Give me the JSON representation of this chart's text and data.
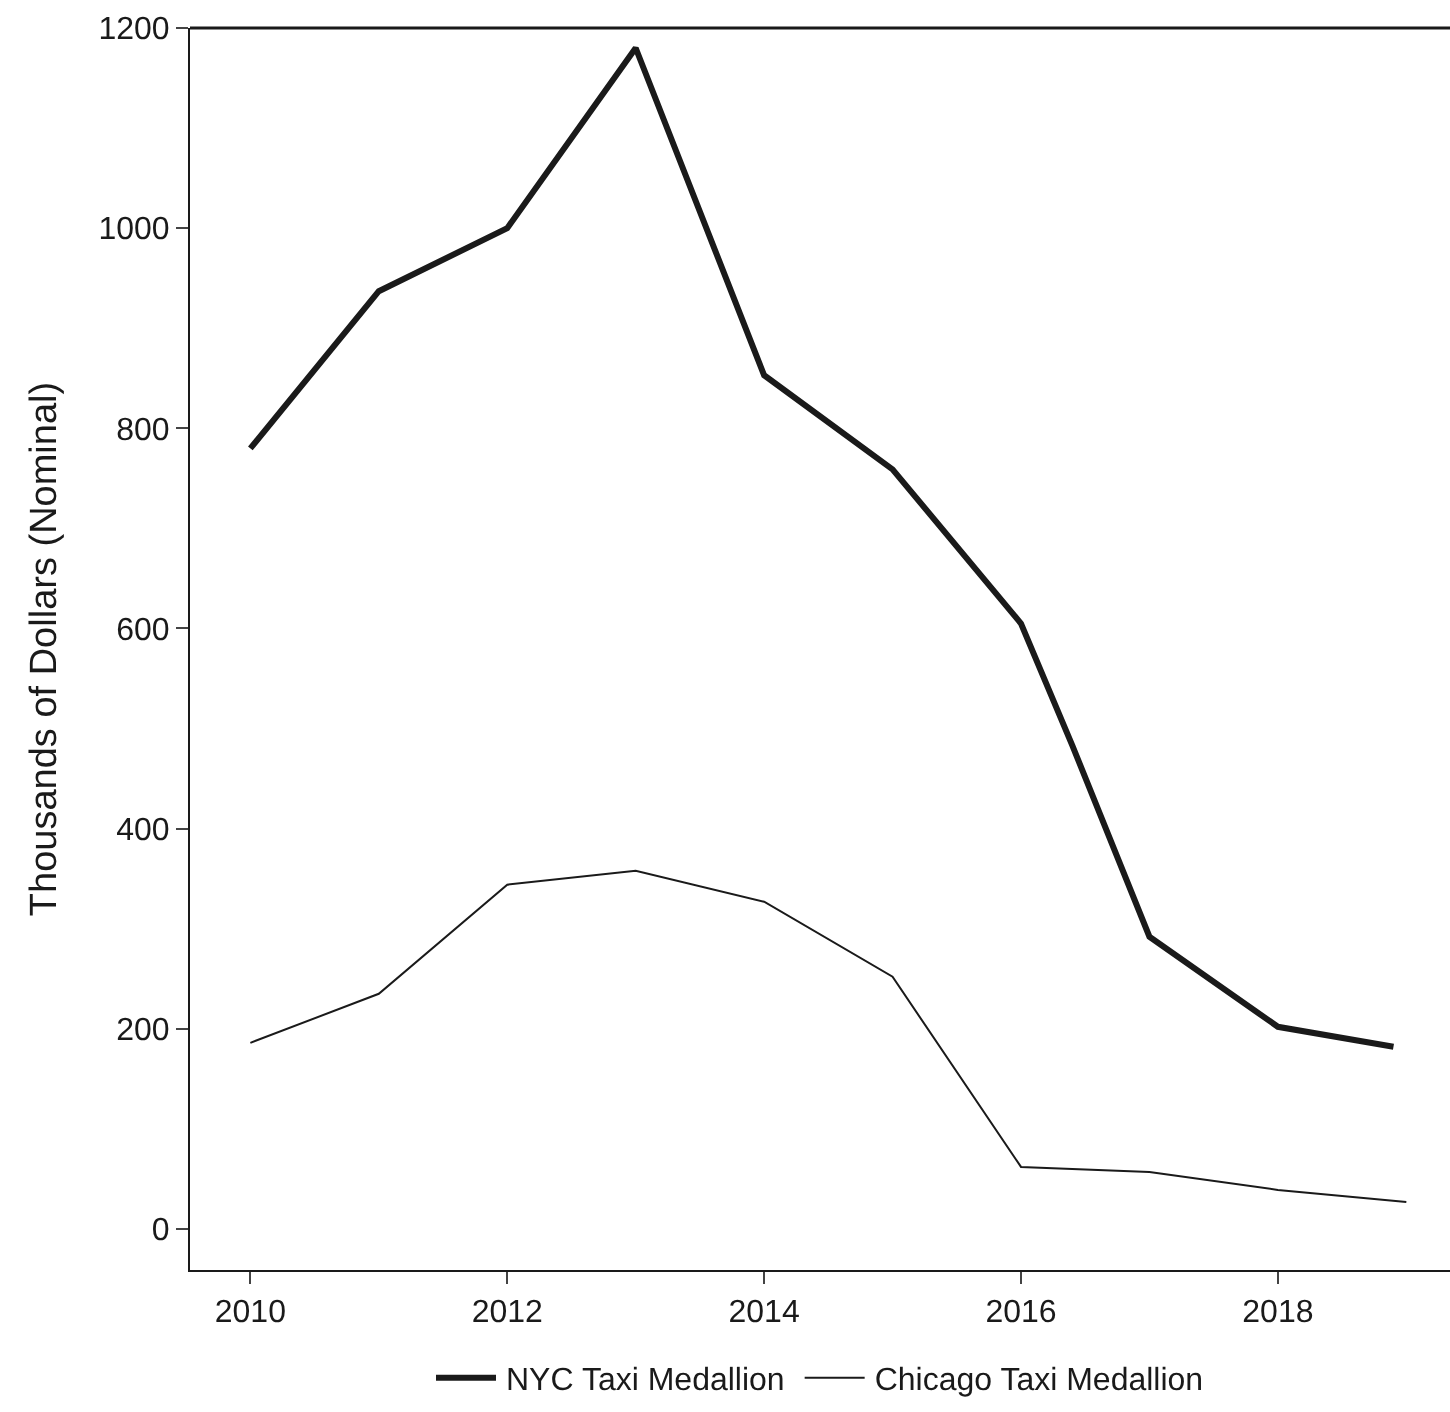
{
  "chart_data": {
    "type": "line",
    "ylabel": "Thousands of Dollars (Nominal)",
    "series": [
      {
        "name": "NYC Taxi Medallion",
        "color": "#1a1a1a",
        "x": [
          2010,
          2011,
          2012,
          2013,
          2014,
          2015,
          2016,
          2016.4,
          2017,
          2018,
          2018.9
        ],
        "values": [
          780,
          937,
          1000,
          1180,
          853,
          759,
          605,
          483,
          292,
          202,
          182
        ]
      },
      {
        "name": "Chicago Taxi Medallion",
        "color": "#1a1a1a",
        "x": [
          2010,
          2011,
          2012,
          2013,
          2014,
          2015,
          2016,
          2017,
          2018,
          2019
        ],
        "values": [
          186,
          235,
          344,
          358,
          327,
          252,
          62,
          57,
          39,
          27
        ]
      }
    ],
    "xlim": [
      2009.53,
      2019.34
    ],
    "xticks": [
      2010,
      2012,
      2014,
      2016,
      2018
    ],
    "ylim": [
      -41,
      1200
    ],
    "yticks": [
      0,
      200,
      400,
      600,
      800,
      1000,
      1200
    ],
    "legend": "bottom",
    "marker": "none",
    "line_style": "solid"
  }
}
